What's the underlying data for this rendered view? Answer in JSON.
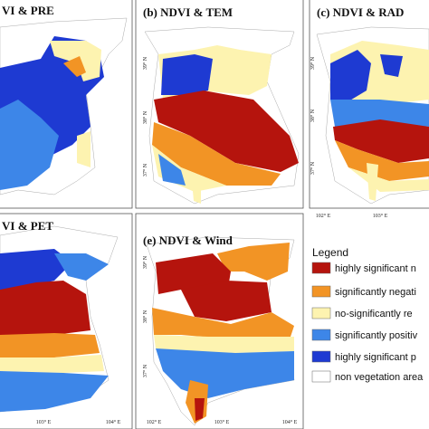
{
  "panels": [
    {
      "title": "VI & PRE",
      "x_labels": [],
      "y_labels": []
    },
    {
      "title": "(b) NDVI & TEM",
      "x_labels": [],
      "y_labels": [
        "39° N",
        "38° N",
        "37° N"
      ]
    },
    {
      "title": "(c) NDVI & RAD",
      "x_labels": [
        "102° E",
        "103° E"
      ],
      "y_labels": [
        "39° N",
        "38° N",
        "37° N"
      ]
    },
    {
      "title": "VI & PET",
      "x_labels": [
        "103° E",
        "104° E"
      ],
      "y_labels": []
    },
    {
      "title": "(e) NDVI & Wind",
      "x_labels": [
        "102° E",
        "103° E",
        "104° E"
      ],
      "y_labels": [
        "39° N",
        "38° N",
        "37° N"
      ]
    }
  ],
  "legend": {
    "title": "Legend",
    "items": [
      "highly significant n",
      "significantly negati",
      "no-significantly re",
      "significantly positiv",
      "highly significant p",
      "non vegetation area"
    ]
  }
}
